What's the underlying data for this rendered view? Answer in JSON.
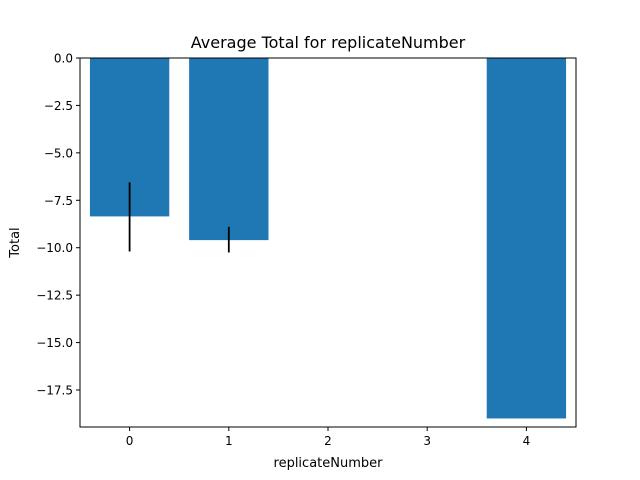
{
  "chart_data": {
    "type": "bar",
    "title": "Average Total for replicateNumber",
    "xlabel": "replicateNumber",
    "ylabel": "Total",
    "categories": [
      "0",
      "1",
      "2",
      "3",
      "4"
    ],
    "values": [
      -8.35,
      -9.6,
      0,
      0,
      -19.0
    ],
    "error_low": [
      -10.2,
      -10.25,
      null,
      null,
      null
    ],
    "error_high": [
      -6.55,
      -8.9,
      null,
      null,
      null
    ],
    "ylim": [
      -19.45,
      0
    ],
    "yticks": [
      "0.0",
      "−2.5",
      "−5.0",
      "−7.5",
      "−10.0",
      "−12.5",
      "−15.0",
      "−17.5"
    ],
    "ytick_values": [
      0,
      -2.5,
      -5,
      -7.5,
      -10,
      -12.5,
      -15,
      -17.5
    ],
    "grid": false,
    "bar_color": "#1f77b4",
    "error_color": "#000000"
  }
}
